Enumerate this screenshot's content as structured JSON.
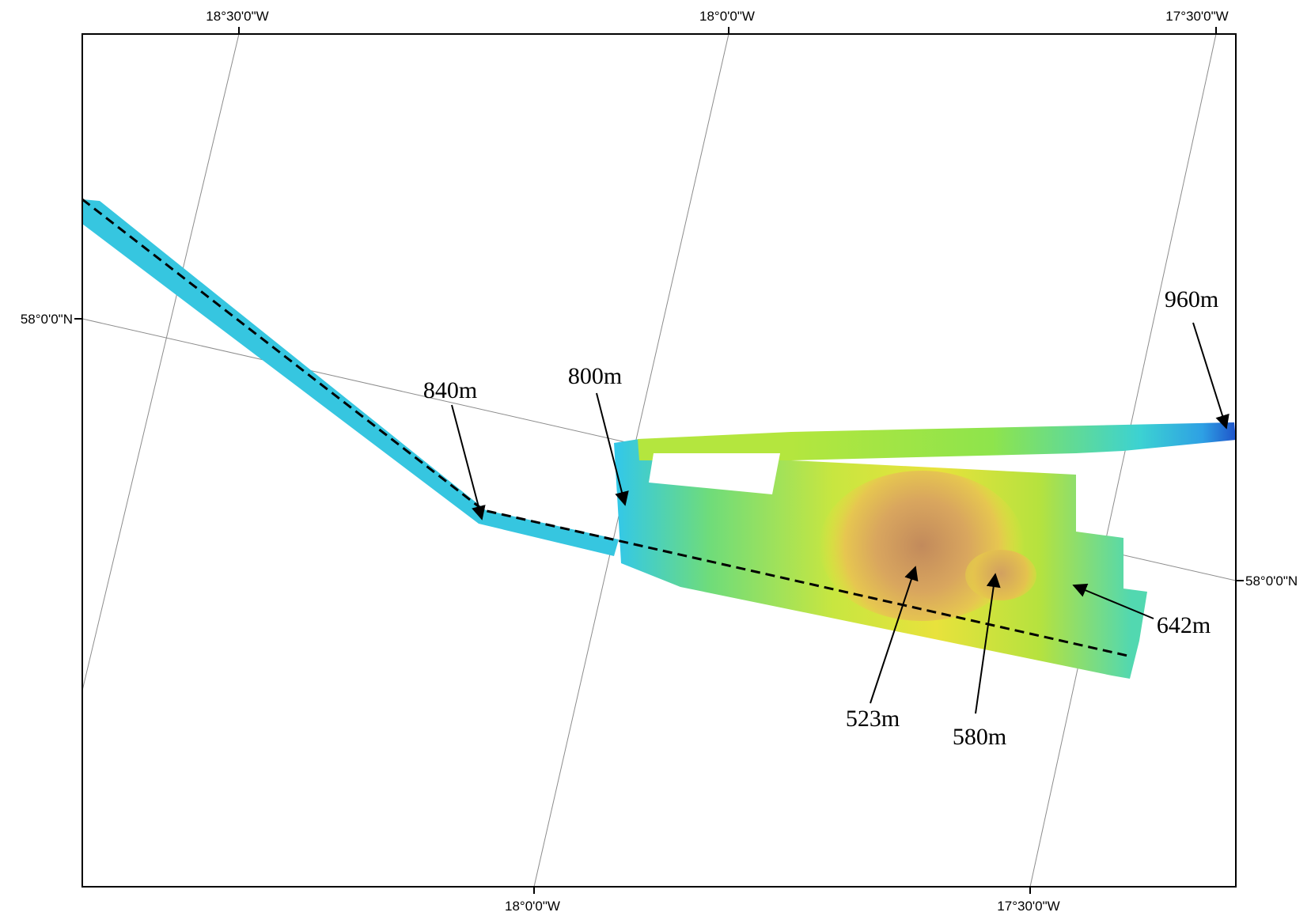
{
  "map": {
    "grid_labels": {
      "top": [
        "18°30'0\"W",
        "18°0'0\"W",
        "17°30'0\"W"
      ],
      "bottom": [
        "18°0'0\"W",
        "17°30'0\"W"
      ],
      "left": [
        "58°0'0\"N"
      ],
      "right": [
        "58°0'0\"N"
      ]
    },
    "depth_labels": [
      "840m",
      "800m",
      "960m",
      "642m",
      "523m",
      "580m"
    ],
    "colors": {
      "deep": "#1e5bd6",
      "mid_deep": "#2ec8e0",
      "mid": "#7ee05a",
      "shallow": "#e6e83a",
      "peak": "#c08860",
      "track": "#000000",
      "frame": "#000000",
      "graticule": "#8c8c8c"
    }
  }
}
